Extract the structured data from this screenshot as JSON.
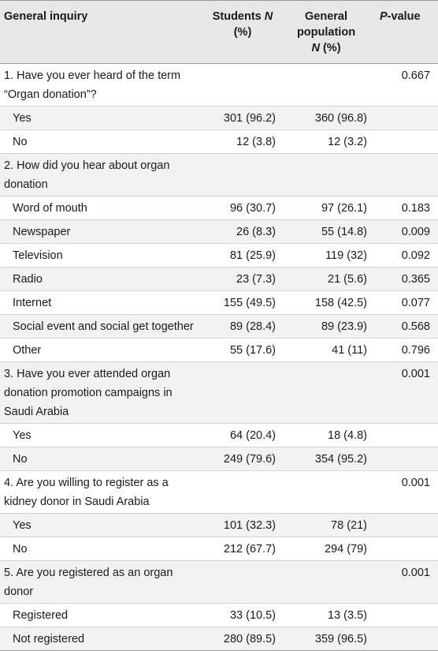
{
  "table": {
    "headers": {
      "col1": "General inquiry",
      "col2_a": "Students ",
      "col2_n": "N",
      "col2_b": "(%)",
      "col3_a": "General population",
      "col3_n": "N",
      "col3_b": " (%)",
      "col4_p": "P",
      "col4_b": "-value"
    },
    "rows": [
      {
        "label": "1. Have you ever heard of the term “Organ donation”?",
        "students": "",
        "general": "",
        "p": "0.667",
        "indent": false
      },
      {
        "label": "Yes",
        "students": "301 (96.2)",
        "general": "360 (96.8)",
        "p": "",
        "indent": true
      },
      {
        "label": "No",
        "students": "12 (3.8)",
        "general": "12 (3.2)",
        "p": "",
        "indent": true
      },
      {
        "label": "2. How did you hear about organ donation",
        "students": "",
        "general": "",
        "p": "",
        "indent": false
      },
      {
        "label": "Word of mouth",
        "students": "96 (30.7)",
        "general": "97 (26.1)",
        "p": "0.183",
        "indent": true
      },
      {
        "label": "Newspaper",
        "students": "26 (8.3)",
        "general": "55 (14.8)",
        "p": "0.009",
        "indent": true
      },
      {
        "label": "Television",
        "students": "81 (25.9)",
        "general": "119 (32)",
        "p": "0.092",
        "indent": true
      },
      {
        "label": "Radio",
        "students": "23 (7.3)",
        "general": "21 (5.6)",
        "p": "0.365",
        "indent": true
      },
      {
        "label": "Internet",
        "students": "155 (49.5)",
        "general": "158 (42.5)",
        "p": "0.077",
        "indent": true
      },
      {
        "label": "Social event and social get together",
        "students": "89 (28.4)",
        "general": "89 (23.9)",
        "p": "0.568",
        "indent": true
      },
      {
        "label": "Other",
        "students": "55 (17.6)",
        "general": "41 (11)",
        "p": "0.796",
        "indent": true
      },
      {
        "label": "3. Have you ever attended organ donation promotion campaigns in Saudi Arabia",
        "students": "",
        "general": "",
        "p": "0.001",
        "indent": false
      },
      {
        "label": "Yes",
        "students": "64 (20.4)",
        "general": "18 (4.8)",
        "p": "",
        "indent": true
      },
      {
        "label": "No",
        "students": "249 (79.6)",
        "general": "354 (95.2)",
        "p": "",
        "indent": true
      },
      {
        "label": "4. Are you willing to register as a kidney donor in Saudi Arabia",
        "students": "",
        "general": "",
        "p": "0.001",
        "indent": false
      },
      {
        "label": "Yes",
        "students": "101 (32.3)",
        "general": "78 (21)",
        "p": "",
        "indent": true
      },
      {
        "label": "No",
        "students": "212 (67.7)",
        "general": "294 (79)",
        "p": "",
        "indent": true
      },
      {
        "label": "5. Are you registered as an organ donor",
        "students": "",
        "general": "",
        "p": "0.001",
        "indent": false
      },
      {
        "label": "Registered",
        "students": "33 (10.5)",
        "general": "13 (3.5)",
        "p": "",
        "indent": true
      },
      {
        "label": "Not registered",
        "students": "280 (89.5)",
        "general": "359 (96.5)",
        "p": "",
        "indent": true
      }
    ]
  }
}
